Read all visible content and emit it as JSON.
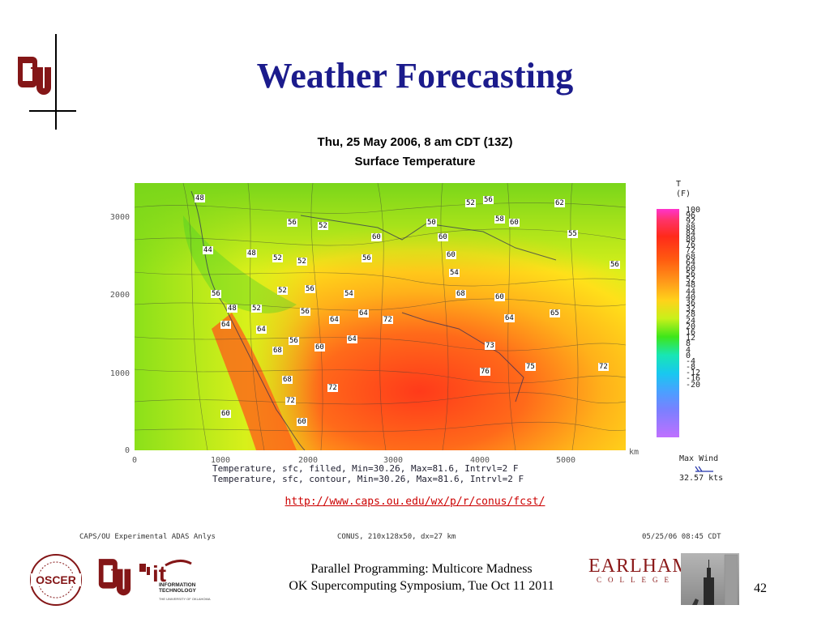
{
  "slide": {
    "title": "Weather Forecasting",
    "page_number": "42"
  },
  "map": {
    "date_line": "Thu, 25 May 2006, 8 am CDT (13Z)",
    "subtitle": "Surface Temperature",
    "y_ticks": [
      "3000",
      "2000",
      "1000",
      "0"
    ],
    "x_ticks": [
      "0",
      "1000",
      "2000",
      "3000",
      "4000",
      "5000"
    ],
    "x_unit": "km",
    "caption_filled": "Temperature, sfc, filled, Min=30.26, Max=81.6, Intrvl=2 F",
    "caption_contour": "Temperature, sfc, contour, Min=30.26, Max=81.6, Intrvl=2 F",
    "contour_labels": [
      "48",
      "52",
      "56",
      "62",
      "56",
      "52",
      "50",
      "60",
      "60",
      "55",
      "44",
      "48",
      "52",
      "52",
      "56",
      "60",
      "56",
      "54",
      "68",
      "56",
      "48",
      "52",
      "56",
      "52",
      "54",
      "64",
      "60",
      "58",
      "56",
      "64",
      "72",
      "64",
      "65",
      "60",
      "64",
      "64",
      "68",
      "60",
      "56",
      "73",
      "76",
      "75",
      "72",
      "64",
      "68",
      "72",
      "72",
      "60",
      "60"
    ],
    "colorbar_label_line1": "T",
    "colorbar_label_line2": "(F)",
    "colorbar_values": [
      "100",
      "96",
      "92",
      "88",
      "84",
      "80",
      "76",
      "72",
      "68",
      "64",
      "60",
      "56",
      "52",
      "48",
      "44",
      "40",
      "36",
      "32",
      "28",
      "24",
      "20",
      "16",
      "12",
      "8",
      "4",
      "0",
      "-4",
      "-8",
      "-12",
      "-16",
      "-20"
    ],
    "max_wind_label": "Max Wind",
    "max_wind_value": "32.57 kts",
    "url": "http://www.caps.ou.edu/wx/p/r/conus/fcst/",
    "info_left": "CAPS/OU Experimental ADAS Anlys",
    "info_mid": "CONUS, 210x128x50, dx=27 km",
    "info_right": "05/25/06 08:45 CDT"
  },
  "footer": {
    "line1": "Parallel Programming: Multicore Madness",
    "line2": "OK Supercomputing Symposium, Tue Oct 11 2011"
  },
  "logos": {
    "oscer": "OSCER",
    "it_main": "it",
    "it_line1": "INFORMATION",
    "it_line2": "TECHNOLOGY",
    "it_university": "THE UNIVERSITY OF OKLAHOMA",
    "earlham": "EARLHAM",
    "college": "COLLEGE"
  },
  "colors": {
    "title": "#1b1b8c",
    "ou_crimson": "#841617",
    "url": "#cc0000",
    "earlham": "#8b1a1a"
  }
}
